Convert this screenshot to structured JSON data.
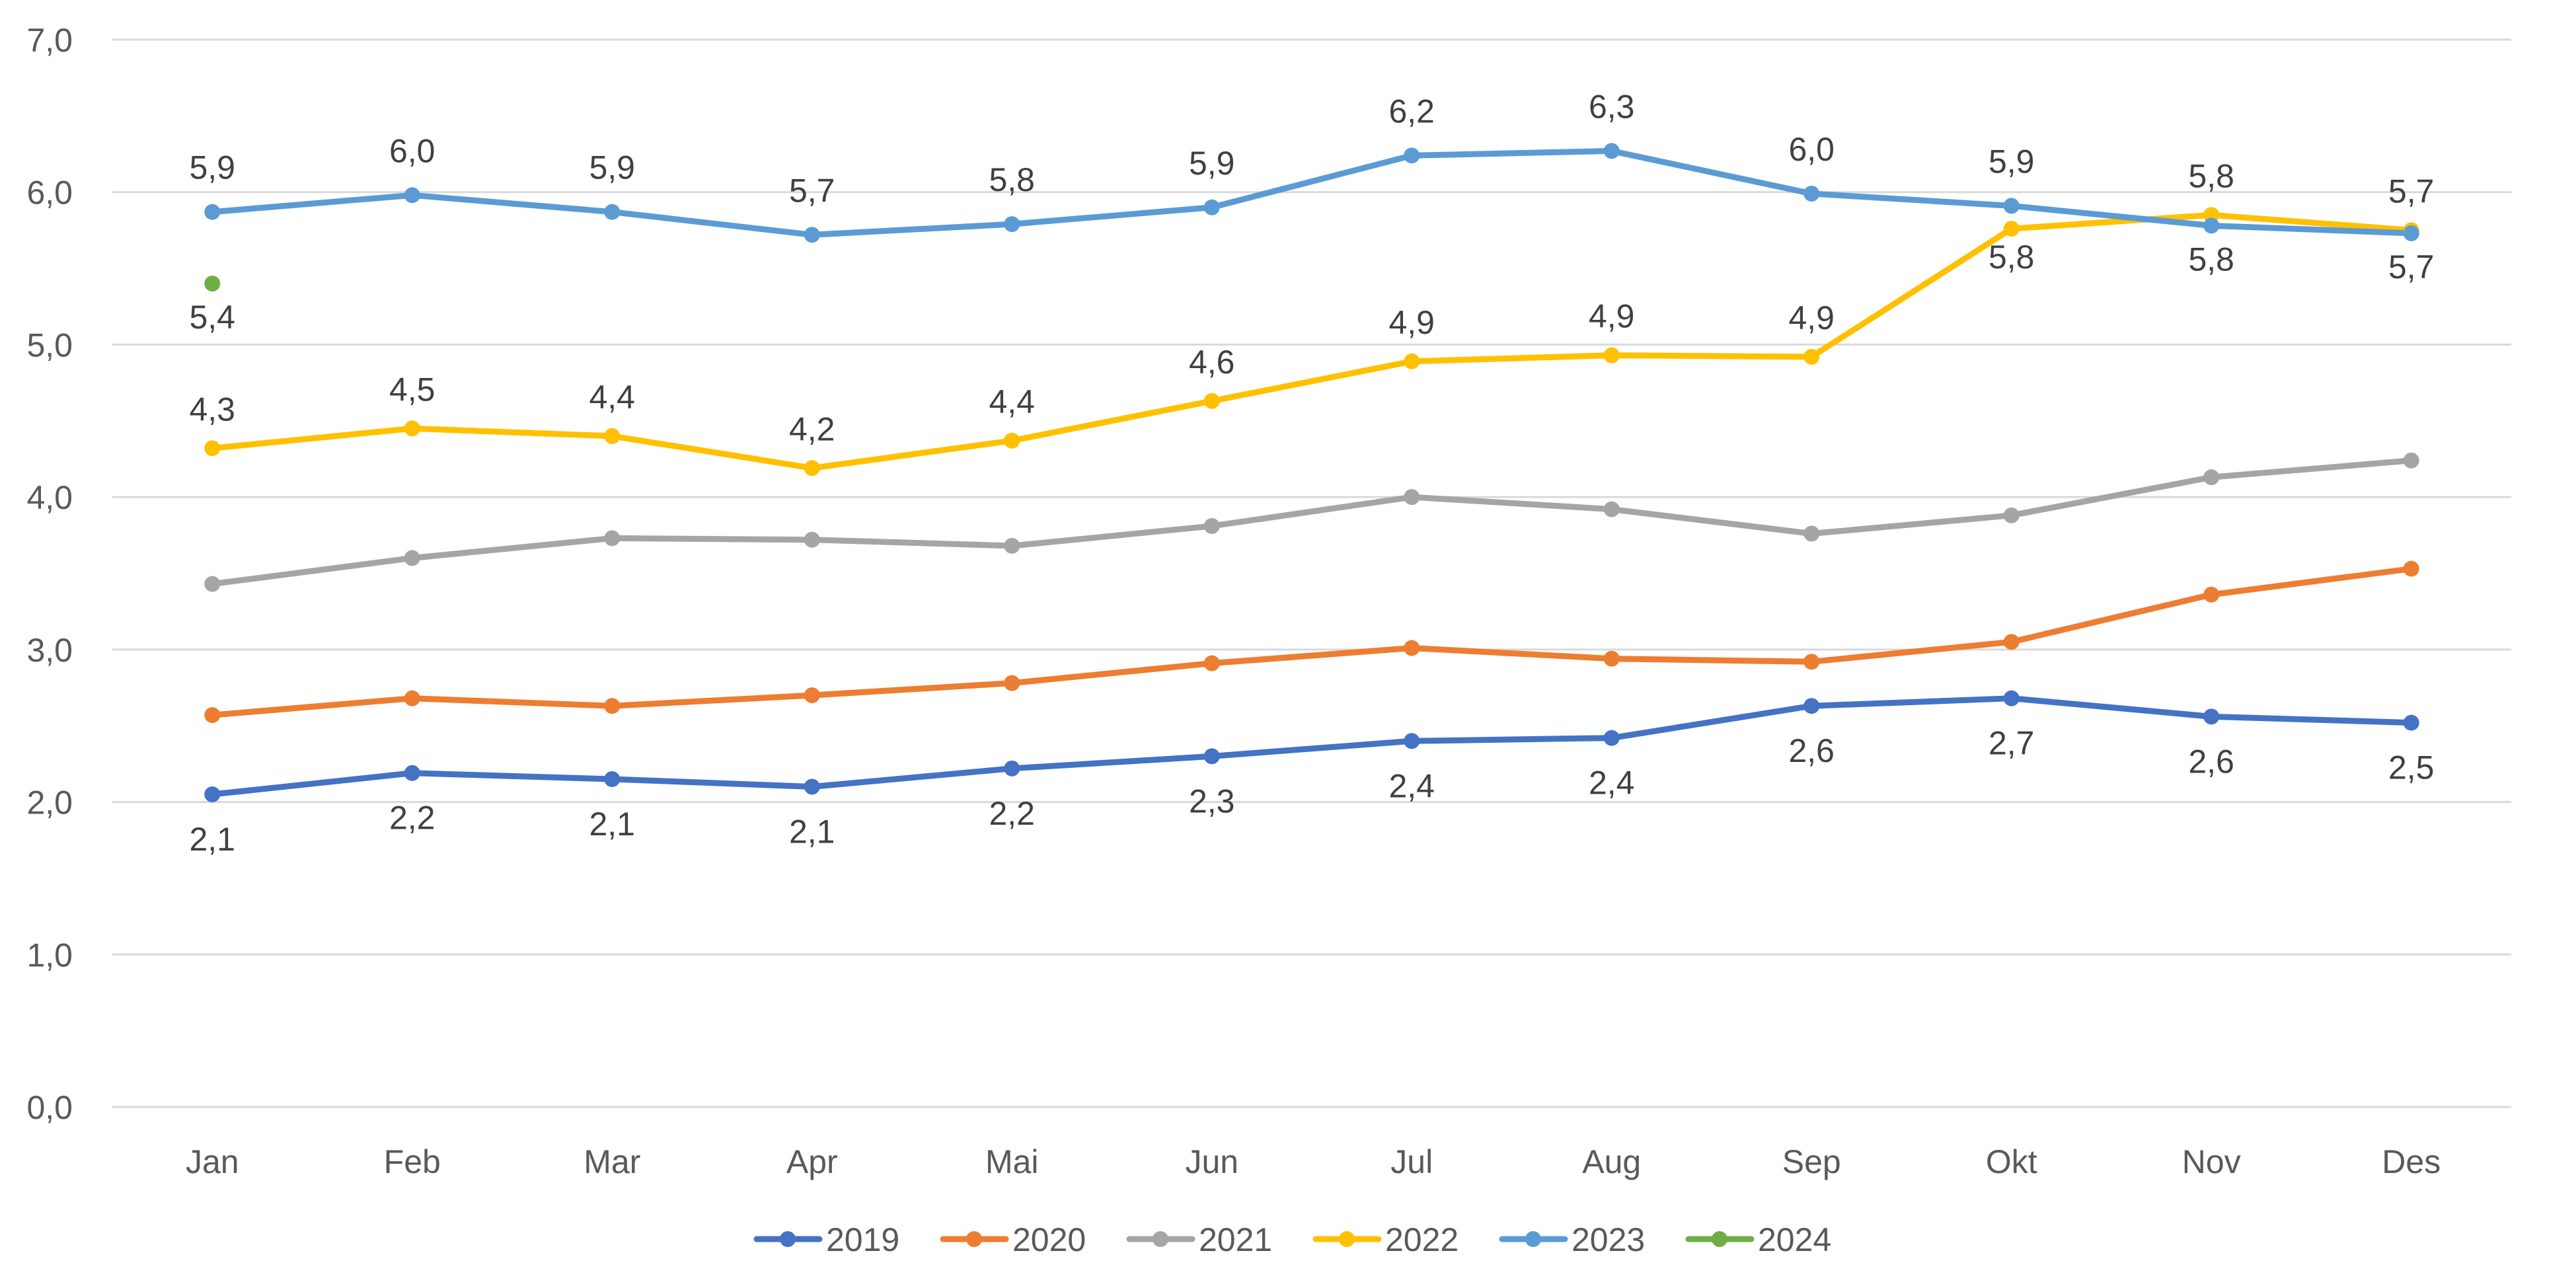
{
  "chart_data": {
    "type": "line",
    "title": "",
    "xlabel": "",
    "ylabel": "",
    "ylim": [
      0,
      7
    ],
    "y_ticks": [
      "0,0",
      "1,0",
      "2,0",
      "3,0",
      "4,0",
      "5,0",
      "6,0",
      "7,0"
    ],
    "y_tick_values": [
      0,
      1,
      2,
      3,
      4,
      5,
      6,
      7
    ],
    "grid": true,
    "legend_position": "bottom",
    "categories": [
      "Jan",
      "Feb",
      "Mar",
      "Apr",
      "Mai",
      "Jun",
      "Jul",
      "Aug",
      "Sep",
      "Okt",
      "Nov",
      "Des"
    ],
    "series": [
      {
        "name": "2019",
        "color": "#4472C4",
        "values": [
          2.05,
          2.19,
          2.15,
          2.1,
          2.22,
          2.3,
          2.4,
          2.42,
          2.63,
          2.68,
          2.56,
          2.52
        ],
        "labels": [
          "2,1",
          "2,2",
          "2,1",
          "2,1",
          "2,2",
          "2,3",
          "2,4",
          "2,4",
          "2,6",
          "2,7",
          "2,6",
          "2,5"
        ],
        "label_position": "below"
      },
      {
        "name": "2020",
        "color": "#ED7D31",
        "values": [
          2.57,
          2.68,
          2.63,
          2.7,
          2.78,
          2.91,
          3.01,
          2.94,
          2.92,
          3.05,
          3.36,
          3.53
        ],
        "labels": null,
        "label_position": "none"
      },
      {
        "name": "2021",
        "color": "#A5A5A5",
        "values": [
          3.43,
          3.6,
          3.73,
          3.72,
          3.68,
          3.81,
          4.0,
          3.92,
          3.76,
          3.88,
          4.13,
          4.24
        ],
        "labels": null,
        "label_position": "none"
      },
      {
        "name": "2022",
        "color": "#FFC000",
        "values": [
          4.32,
          4.45,
          4.4,
          4.19,
          4.37,
          4.63,
          4.89,
          4.93,
          4.92,
          5.76,
          5.85,
          5.75
        ],
        "labels": [
          "4,3",
          "4,5",
          "4,4",
          "4,2",
          "4,4",
          "4,6",
          "4,9",
          "4,9",
          "4,9",
          "5,8",
          "5,8",
          "5,7"
        ],
        "label_position": "mixed"
      },
      {
        "name": "2023",
        "color": "#5B9BD5",
        "values": [
          5.87,
          5.98,
          5.87,
          5.72,
          5.79,
          5.9,
          6.24,
          6.27,
          5.99,
          5.91,
          5.78,
          5.73
        ],
        "labels": [
          "5,9",
          "6,0",
          "5,9",
          "5,7",
          "5,8",
          "5,9",
          "6,2",
          "6,3",
          "6,0",
          "5,9",
          "5,8",
          "5,7"
        ],
        "label_position": "mixed"
      },
      {
        "name": "2024",
        "color": "#70AD47",
        "values": [
          5.4,
          null,
          null,
          null,
          null,
          null,
          null,
          null,
          null,
          null,
          null,
          null
        ],
        "labels": [
          "5,4",
          null,
          null,
          null,
          null,
          null,
          null,
          null,
          null,
          null,
          null,
          null
        ],
        "label_position": "below"
      }
    ]
  }
}
